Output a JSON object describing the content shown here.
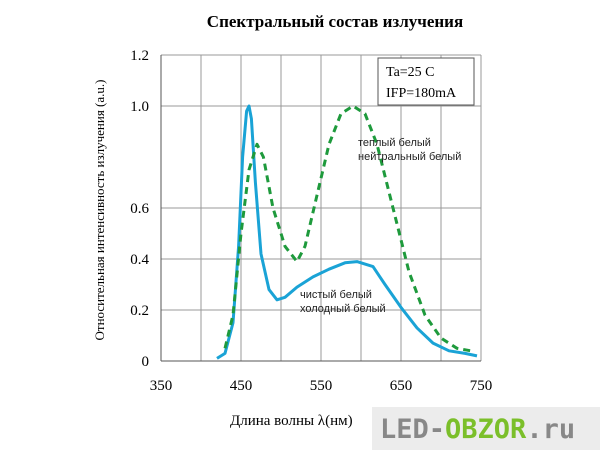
{
  "chart_data": {
    "type": "line",
    "title": "Спектральный состав излучения",
    "x_label": "Длина волны λ(нм)",
    "y_label": "Относительная интенсивность излучения (a.u.)",
    "xlim": [
      350,
      750
    ],
    "xticks": [
      350,
      450,
      550,
      650,
      750
    ],
    "ylim": [
      0,
      1.2
    ],
    "yticks": [
      0,
      0.2,
      0.4,
      0.6,
      {
        "value": 1,
        "label": "1.0"
      },
      1.2
    ],
    "yticks_fix": null,
    "grid": true,
    "conditions": [
      "Ta=25 C",
      "IFP=180mA"
    ],
    "series": [
      {
        "color": "#1aa3d6",
        "dash": false,
        "labels": [
          "чистый белый",
          "холодный белый"
        ],
        "x": [
          420,
          430,
          440,
          447,
          452,
          457,
          460,
          463,
          468,
          475,
          485,
          495,
          505,
          520,
          540,
          560,
          580,
          595,
          615,
          630,
          650,
          670,
          690,
          710,
          730,
          745
        ],
        "values": [
          0.01,
          0.03,
          0.15,
          0.45,
          0.8,
          0.98,
          1.0,
          0.95,
          0.7,
          0.42,
          0.28,
          0.24,
          0.25,
          0.29,
          0.33,
          0.36,
          0.385,
          0.39,
          0.37,
          0.3,
          0.21,
          0.13,
          0.07,
          0.04,
          0.03,
          0.02
        ]
      },
      {
        "color": "#1e9a3c",
        "dash": true,
        "labels": [
          "теплый белый",
          "нейтральный белый"
        ],
        "x": [
          430,
          440,
          450,
          460,
          470,
          478,
          490,
          505,
          520,
          530,
          545,
          560,
          575,
          590,
          605,
          620,
          640,
          660,
          680,
          700,
          720,
          737
        ],
        "values": [
          0.05,
          0.18,
          0.5,
          0.75,
          0.85,
          0.8,
          0.6,
          0.45,
          0.39,
          0.45,
          0.65,
          0.85,
          0.97,
          1.0,
          0.97,
          0.85,
          0.6,
          0.35,
          0.18,
          0.09,
          0.05,
          0.04
        ]
      }
    ]
  },
  "watermark": [
    "LED-",
    "OBZOR",
    ".ru"
  ]
}
